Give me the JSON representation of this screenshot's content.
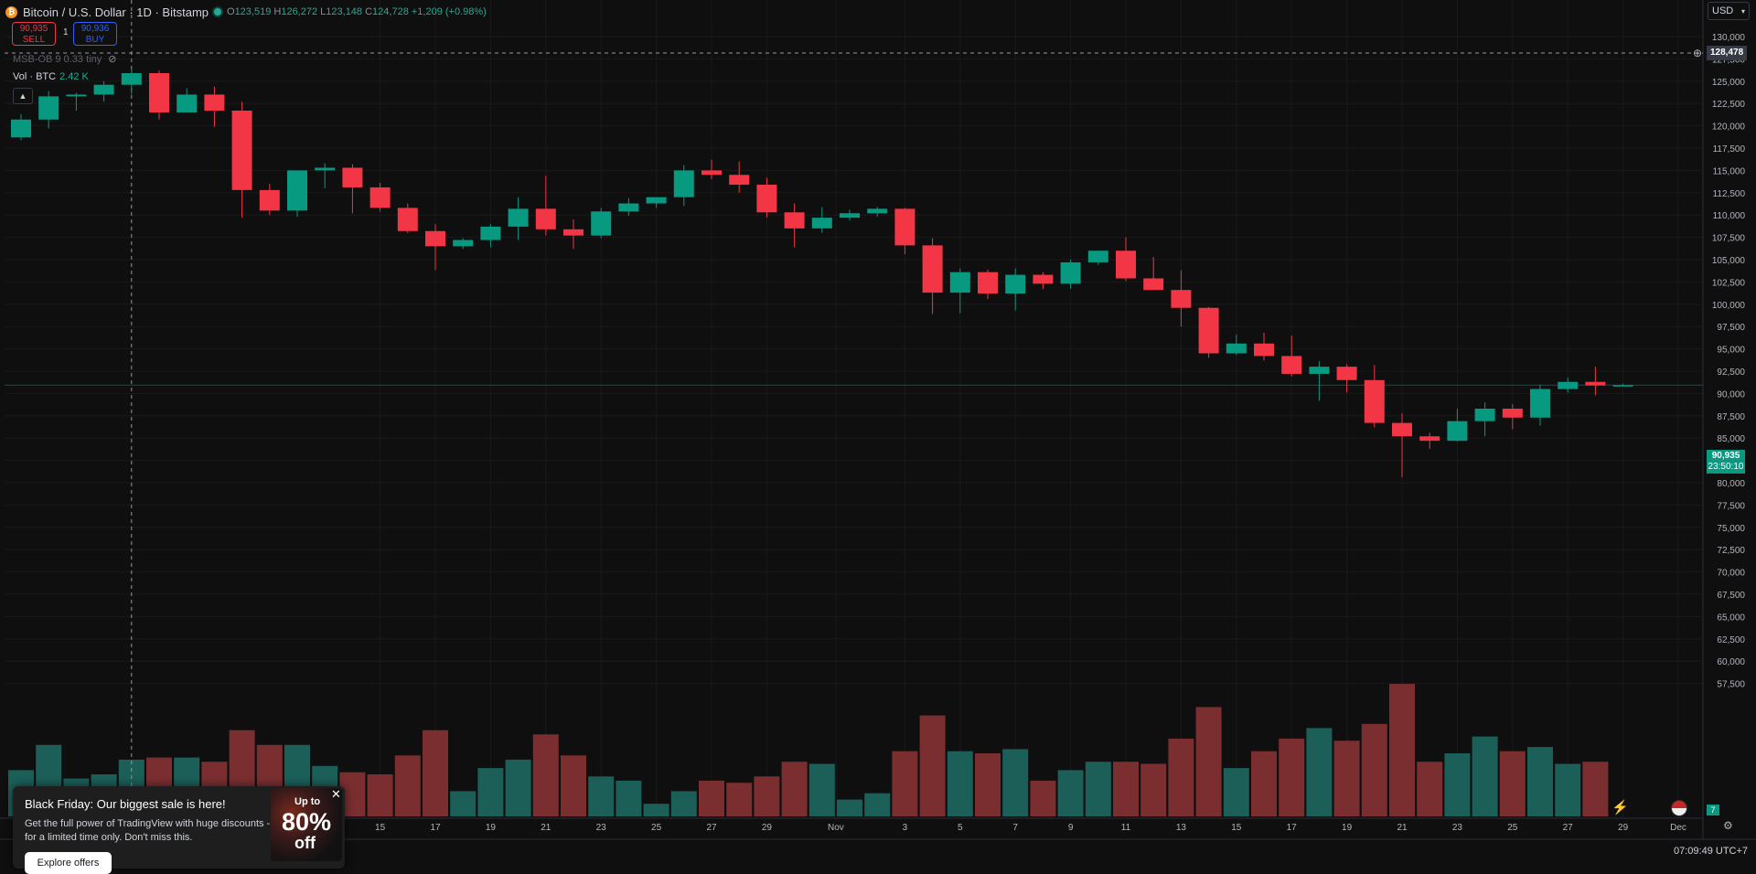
{
  "header": {
    "symbol": "Bitcoin / U.S. Dollar · 1D · Bitstamp",
    "ohlc": {
      "o": "123,519",
      "h": "126,272",
      "l": "123,148",
      "c": "124,728",
      "chg": "+1,209 (+0.98%)"
    }
  },
  "trade": {
    "sell_price": "90,935",
    "sell_label": "SELL",
    "spread": "1",
    "buy_price": "90,936",
    "buy_label": "BUY"
  },
  "indicators": {
    "msb": "MSB-OB 9 0.33 tiny",
    "vol_label": "Vol · BTC",
    "vol_value": "2.42 K"
  },
  "currency": "USD",
  "crosshair_price": "128,478",
  "last_price": {
    "price": "90,935",
    "countdown": "23:50:10"
  },
  "price_axis": [
    "130,000",
    "127,500",
    "125,000",
    "122,500",
    "120,000",
    "117,500",
    "115,000",
    "112,500",
    "110,000",
    "107,500",
    "105,000",
    "102,500",
    "100,000",
    "97,500",
    "95,000",
    "92,500",
    "90,000",
    "87,500",
    "85,000",
    "82,500",
    "80,000",
    "77,500",
    "75,000",
    "72,500",
    "70,000",
    "67,500",
    "65,000",
    "62,500",
    "60,000",
    "57,500"
  ],
  "time_axis": [
    "15",
    "17",
    "19",
    "21",
    "23",
    "25",
    "27",
    "29",
    "Nov",
    "3",
    "5",
    "7",
    "9",
    "11",
    "13",
    "15",
    "17",
    "19",
    "21",
    "23",
    "25",
    "27",
    "29",
    "Dec"
  ],
  "promo": {
    "title": "Black Friday: Our biggest sale is here!",
    "body": "Get the full power of TradingView with huge discounts - for a limited time only. Don't miss this.",
    "button": "Explore offers",
    "upto": "Up to",
    "pct": "80%",
    "off": "off"
  },
  "clock": "07:09:49 UTC+7",
  "badge": "7",
  "colors": {
    "up": "#089981",
    "down": "#f23645",
    "up_vol": "#1c5e58",
    "down_vol": "#7a2e30",
    "bg": "#0f0f0f",
    "grid": "#1a1a1a"
  },
  "chart_data": {
    "type": "candlestick",
    "dates": [
      "Oct 2",
      "Oct 3",
      "Oct 4",
      "Oct 5",
      "Oct 6",
      "Oct 7",
      "Oct 8",
      "Oct 9",
      "Oct 10",
      "Oct 11",
      "Oct 12",
      "Oct 13",
      "Oct 14",
      "Oct 15",
      "Oct 16",
      "Oct 17",
      "Oct 18",
      "Oct 19",
      "Oct 20",
      "Oct 21",
      "Oct 22",
      "Oct 23",
      "Oct 24",
      "Oct 25",
      "Oct 26",
      "Oct 27",
      "Oct 28",
      "Oct 29",
      "Oct 30",
      "Oct 31",
      "Nov 1",
      "Nov 2",
      "Nov 3",
      "Nov 4",
      "Nov 5",
      "Nov 6",
      "Nov 7",
      "Nov 8",
      "Nov 9",
      "Nov 10",
      "Nov 11",
      "Nov 12",
      "Nov 13",
      "Nov 14",
      "Nov 15",
      "Nov 16",
      "Nov 17",
      "Nov 18",
      "Nov 19",
      "Nov 20",
      "Nov 21",
      "Nov 22",
      "Nov 23",
      "Nov 24",
      "Nov 25",
      "Nov 26",
      "Nov 27",
      "Nov 28",
      "Nov 29"
    ],
    "ohlc": [
      [
        118700,
        121300,
        118400,
        120700
      ],
      [
        120700,
        123900,
        119700,
        123300
      ],
      [
        123300,
        123700,
        121700,
        123500
      ],
      [
        123500,
        125000,
        122700,
        124600
      ],
      [
        124600,
        126300,
        123500,
        125900
      ],
      [
        125900,
        126200,
        120700,
        121500
      ],
      [
        121500,
        124200,
        121500,
        123500
      ],
      [
        123500,
        124400,
        119900,
        121700
      ],
      [
        121700,
        122700,
        109700,
        112800
      ],
      [
        112800,
        113500,
        110000,
        110500
      ],
      [
        110500,
        115000,
        109800,
        115000
      ],
      [
        115000,
        115800,
        113000,
        115300
      ],
      [
        115300,
        115700,
        110200,
        113100
      ],
      [
        113100,
        113600,
        110400,
        110800
      ],
      [
        110800,
        111300,
        108000,
        108200
      ],
      [
        108200,
        109000,
        103800,
        106500
      ],
      [
        106500,
        107400,
        106200,
        107200
      ],
      [
        107200,
        109000,
        106400,
        108700
      ],
      [
        108700,
        112000,
        107200,
        110700
      ],
      [
        110700,
        114400,
        107700,
        108400
      ],
      [
        108400,
        109500,
        106200,
        107700
      ],
      [
        107700,
        110800,
        107400,
        110400
      ],
      [
        110400,
        111900,
        109900,
        111300
      ],
      [
        111300,
        112000,
        110800,
        112000
      ],
      [
        112000,
        115600,
        111000,
        115000
      ],
      [
        115000,
        116200,
        114000,
        114500
      ],
      [
        114500,
        116000,
        112500,
        113400
      ],
      [
        113400,
        114200,
        109700,
        110300
      ],
      [
        110300,
        111300,
        106400,
        108500
      ],
      [
        108500,
        110900,
        108000,
        109700
      ],
      [
        109700,
        110600,
        109400,
        110200
      ],
      [
        110200,
        110900,
        109800,
        110700
      ],
      [
        110700,
        110800,
        105600,
        106600
      ],
      [
        106600,
        107400,
        98900,
        101300
      ],
      [
        101300,
        104000,
        99000,
        103600
      ],
      [
        103600,
        103900,
        100600,
        101200
      ],
      [
        101200,
        104000,
        99300,
        103300
      ],
      [
        103300,
        103600,
        101700,
        102300
      ],
      [
        102300,
        105000,
        101700,
        104700
      ],
      [
        104700,
        106000,
        104400,
        106000
      ],
      [
        106000,
        107500,
        102600,
        102900
      ],
      [
        102900,
        105300,
        101600,
        101600
      ],
      [
        101600,
        103800,
        97500,
        99600
      ],
      [
        99600,
        99700,
        94000,
        94500
      ],
      [
        94500,
        96600,
        94300,
        95600
      ],
      [
        95600,
        96800,
        93700,
        94200
      ],
      [
        94200,
        96500,
        91900,
        92200
      ],
      [
        92200,
        93600,
        89200,
        93000
      ],
      [
        93000,
        93300,
        90100,
        91500
      ],
      [
        91500,
        93200,
        86200,
        86700
      ],
      [
        86700,
        87800,
        80600,
        85200
      ],
      [
        85200,
        85600,
        83800,
        84700
      ],
      [
        84700,
        88300,
        84600,
        86900
      ],
      [
        86900,
        89000,
        85200,
        88300
      ],
      [
        88300,
        88800,
        86000,
        87300
      ],
      [
        87300,
        91000,
        86400,
        90500
      ],
      [
        90500,
        91800,
        90100,
        91300
      ],
      [
        91300,
        93000,
        89800,
        90900
      ],
      [
        90900,
        91100,
        90800,
        90935
      ]
    ],
    "volume": [
      2.2,
      3.4,
      1.8,
      2.0,
      2.7,
      2.8,
      2.8,
      2.6,
      4.1,
      3.4,
      3.4,
      2.4,
      2.1,
      2.0,
      2.9,
      4.1,
      1.2,
      2.3,
      2.7,
      3.9,
      2.9,
      1.9,
      1.7,
      0.6,
      1.2,
      1.7,
      1.6,
      1.9,
      2.6,
      2.5,
      0.8,
      1.1,
      3.1,
      4.8,
      3.1,
      3.0,
      3.2,
      1.7,
      2.2,
      2.6,
      2.6,
      2.5,
      3.7,
      5.2,
      2.3,
      3.1,
      3.7,
      4.2,
      3.6,
      4.4,
      6.3,
      2.6,
      3.0,
      3.8,
      3.1,
      3.3,
      2.5,
      2.6,
      0.0
    ]
  }
}
